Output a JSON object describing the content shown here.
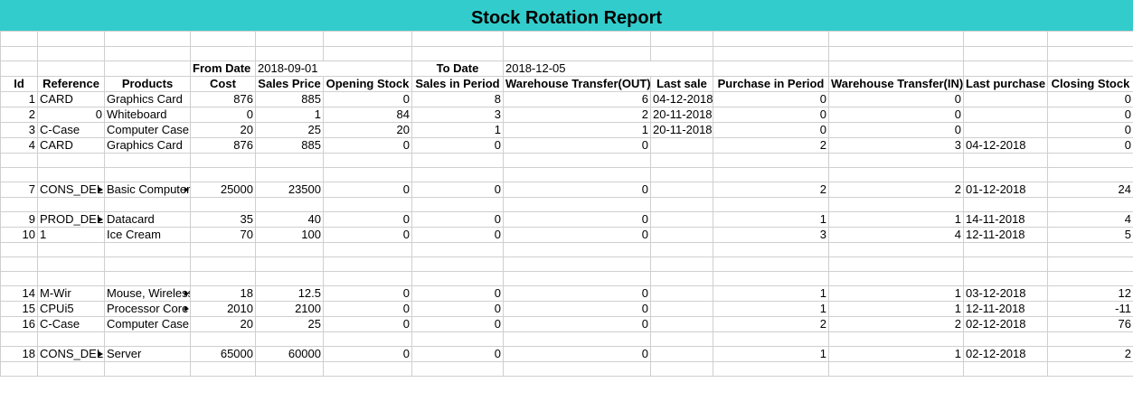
{
  "report": {
    "title": "Stock Rotation Report",
    "from_label": "From Date",
    "from_value": "2018-09-01",
    "to_label": "To Date",
    "to_value": "2018-12-05"
  },
  "columns": [
    "Id",
    "Reference",
    "Products",
    "Cost",
    "Sales Price",
    "Opening Stock",
    "Sales in Period",
    "Warehouse Transfer(OUT)",
    "Last sale",
    "Purchase in Period",
    "Warehouse Transfer(IN)",
    "Last purchase",
    "Closing Stock"
  ],
  "rows": [
    [
      "1",
      "CARD",
      "Graphics Card",
      "876",
      "885",
      "0",
      "8",
      "6",
      "04-12-2018",
      "0",
      "0",
      "",
      "0"
    ],
    [
      "2",
      "0",
      "Whiteboard",
      "0",
      "1",
      "84",
      "3",
      "2",
      "20-11-2018",
      "0",
      "0",
      "",
      "0"
    ],
    [
      "3",
      "C-Case",
      "Computer Case",
      "20",
      "25",
      "20",
      "1",
      "1",
      "20-11-2018",
      "0",
      "0",
      "",
      "0"
    ],
    [
      "4",
      "CARD",
      "Graphics Card",
      "876",
      "885",
      "0",
      "0",
      "0",
      "",
      "2",
      "3",
      "04-12-2018",
      "0"
    ],
    [
      "",
      "",
      "",
      "",
      "",
      "",
      "",
      "",
      "",
      "",
      "",
      "",
      ""
    ],
    [
      "",
      "",
      "",
      "",
      "",
      "",
      "",
      "",
      "",
      "",
      "",
      "",
      ""
    ],
    [
      "7",
      "CONS_DEL",
      "Basic Computer",
      "25000",
      "23500",
      "0",
      "0",
      "0",
      "",
      "2",
      "2",
      "01-12-2018",
      "24"
    ],
    [
      "",
      "",
      "",
      "",
      "",
      "",
      "",
      "",
      "",
      "",
      "",
      "",
      ""
    ],
    [
      "9",
      "PROD_DEL",
      "Datacard",
      "35",
      "40",
      "0",
      "0",
      "0",
      "",
      "1",
      "1",
      "14-11-2018",
      "4"
    ],
    [
      "10",
      "1",
      "Ice Cream",
      "70",
      "100",
      "0",
      "0",
      "0",
      "",
      "3",
      "4",
      "12-11-2018",
      "5"
    ],
    [
      "",
      "",
      "",
      "",
      "",
      "",
      "",
      "",
      "",
      "",
      "",
      "",
      ""
    ],
    [
      "",
      "",
      "",
      "",
      "",
      "",
      "",
      "",
      "",
      "",
      "",
      "",
      ""
    ],
    [
      "",
      "",
      "",
      "",
      "",
      "",
      "",
      "",
      "",
      "",
      "",
      "",
      ""
    ],
    [
      "14",
      "M-Wir",
      "Mouse, Wireless",
      "18",
      "12.5",
      "0",
      "0",
      "0",
      "",
      "1",
      "1",
      "03-12-2018",
      "12"
    ],
    [
      "15",
      "CPUi5",
      "Processor Core",
      "2010",
      "2100",
      "0",
      "0",
      "0",
      "",
      "1",
      "1",
      "12-11-2018",
      "-11"
    ],
    [
      "16",
      "C-Case",
      "Computer Case",
      "20",
      "25",
      "0",
      "0",
      "0",
      "",
      "2",
      "2",
      "02-12-2018",
      "76"
    ],
    [
      "",
      "",
      "",
      "",
      "",
      "",
      "",
      "",
      "",
      "",
      "",
      "",
      ""
    ],
    [
      "18",
      "CONS_DEL",
      "Server",
      "65000",
      "60000",
      "0",
      "0",
      "0",
      "",
      "1",
      "1",
      "02-12-2018",
      "2"
    ],
    [
      "",
      "",
      "",
      "",
      "",
      "",
      "",
      "",
      "",
      "",
      "",
      "",
      ""
    ]
  ],
  "truncated_cells": {
    "7": [
      1,
      2
    ],
    "9": [
      1
    ],
    "14": [
      2
    ],
    "15": [
      2
    ],
    "18": [
      1
    ]
  },
  "colors": {
    "title_bar": "#33cccc",
    "grid": "#cfcfcf"
  }
}
